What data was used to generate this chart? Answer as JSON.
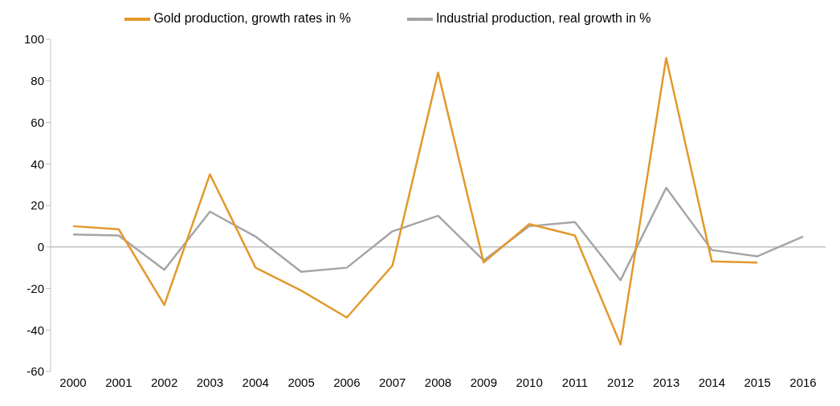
{
  "chart_data": {
    "type": "line",
    "categories": [
      "2000",
      "2001",
      "2002",
      "2003",
      "2004",
      "2005",
      "2006",
      "2007",
      "2008",
      "2009",
      "2010",
      "2011",
      "2012",
      "2013",
      "2014",
      "2015",
      "2016"
    ],
    "series": [
      {
        "name": "Industrial production, real growth in %",
        "color": "#a5a5a5",
        "values": [
          6,
          5.5,
          -11,
          17,
          5,
          -12,
          -10,
          7.5,
          15,
          -6.5,
          10,
          12,
          -16,
          28.5,
          -1.5,
          -4.5,
          5
        ]
      },
      {
        "name": "Gold production, growth rates in %",
        "color": "#e3982b",
        "values": [
          10,
          8.5,
          -28,
          35,
          -10,
          -21,
          -34,
          -9,
          84,
          -7.5,
          11,
          5.5,
          -47,
          91,
          -7,
          -7.5,
          null
        ]
      }
    ],
    "ylim": [
      -60,
      100
    ],
    "yticks": [
      -60,
      -40,
      -20,
      0,
      20,
      40,
      60,
      80,
      100
    ],
    "ref_lines": [
      {
        "axis": "y",
        "value": 0,
        "color": "#bfbfbf"
      }
    ],
    "grid": false,
    "legend": "top",
    "marker": "none",
    "line_style": "solid"
  }
}
